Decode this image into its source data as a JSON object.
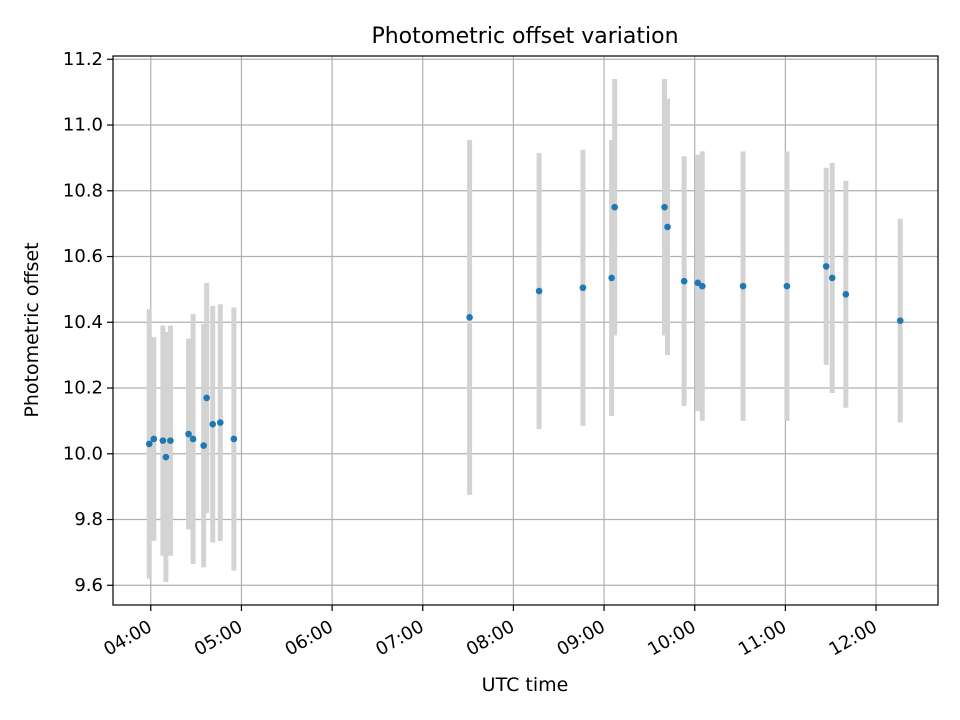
{
  "chart_data": {
    "type": "scatter",
    "title": "Photometric offset variation",
    "xlabel": "UTC time",
    "ylabel": "Photometric offset",
    "xlim": [
      "03:35",
      "12:41"
    ],
    "ylim": [
      9.54,
      11.21
    ],
    "x_ticks": [
      "04:00",
      "05:00",
      "06:00",
      "07:00",
      "08:00",
      "09:00",
      "10:00",
      "11:00",
      "12:00"
    ],
    "y_ticks": [
      "9.6",
      "9.8",
      "10.0",
      "10.2",
      "10.4",
      "10.6",
      "10.8",
      "11.0",
      "11.2"
    ],
    "grid": true,
    "colors": {
      "points": "#1f77b4",
      "errorbars": "#d3d3d3",
      "grid": "#b0b0b0"
    },
    "series": [
      {
        "points": [
          {
            "x": "03:59",
            "y": 10.03,
            "yerr": 0.41
          },
          {
            "x": "04:02",
            "y": 10.045,
            "yerr": 0.31
          },
          {
            "x": "04:08",
            "y": 10.04,
            "yerr": 0.35
          },
          {
            "x": "04:10",
            "y": 9.99,
            "yerr": 0.38
          },
          {
            "x": "04:13",
            "y": 10.04,
            "yerr": 0.35
          },
          {
            "x": "04:25",
            "y": 10.06,
            "yerr": 0.29
          },
          {
            "x": "04:28",
            "y": 10.045,
            "yerr": 0.38
          },
          {
            "x": "04:35",
            "y": 10.025,
            "yerr": 0.37
          },
          {
            "x": "04:37",
            "y": 10.17,
            "yerr": 0.35
          },
          {
            "x": "04:41",
            "y": 10.09,
            "yerr": 0.36
          },
          {
            "x": "04:46",
            "y": 10.095,
            "yerr": 0.36
          },
          {
            "x": "04:55",
            "y": 10.045,
            "yerr": 0.4
          },
          {
            "x": "07:31",
            "y": 10.415,
            "yerr": 0.54
          },
          {
            "x": "08:17",
            "y": 10.495,
            "yerr": 0.42
          },
          {
            "x": "08:46",
            "y": 10.505,
            "yerr": 0.42
          },
          {
            "x": "09:05",
            "y": 10.535,
            "yerr": 0.42
          },
          {
            "x": "09:07",
            "y": 10.75,
            "yerr": 0.39
          },
          {
            "x": "09:40",
            "y": 10.75,
            "yerr": 0.39
          },
          {
            "x": "09:42",
            "y": 10.69,
            "yerr": 0.39
          },
          {
            "x": "09:53",
            "y": 10.525,
            "yerr": 0.38
          },
          {
            "x": "10:02",
            "y": 10.52,
            "yerr": 0.39
          },
          {
            "x": "10:05",
            "y": 10.51,
            "yerr": 0.41
          },
          {
            "x": "10:32",
            "y": 10.51,
            "yerr": 0.41
          },
          {
            "x": "11:01",
            "y": 10.51,
            "yerr": 0.41
          },
          {
            "x": "11:27",
            "y": 10.57,
            "yerr": 0.3
          },
          {
            "x": "11:31",
            "y": 10.535,
            "yerr": 0.35
          },
          {
            "x": "11:40",
            "y": 10.485,
            "yerr": 0.345
          },
          {
            "x": "12:16",
            "y": 10.405,
            "yerr": 0.31
          }
        ]
      }
    ]
  }
}
